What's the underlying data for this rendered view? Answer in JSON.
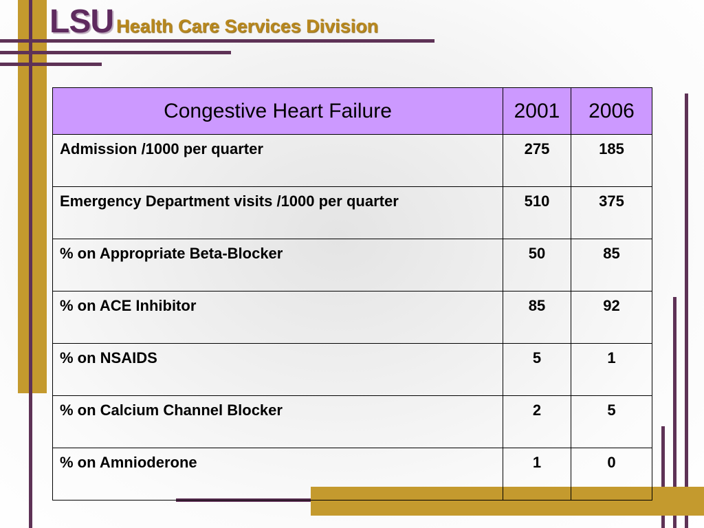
{
  "header": {
    "logo_text": "LSU",
    "division_text": "Health Care Services Division"
  },
  "colors": {
    "purple": "#5e2a5e",
    "gold": "#c49a2e",
    "table_header_bg": "#cc99ff"
  },
  "table": {
    "headers": [
      "Congestive Heart Failure",
      "2001",
      "2006"
    ],
    "rows": [
      {
        "label": "Admission /1000 per quarter",
        "v2001": "275",
        "v2006": "185"
      },
      {
        "label": "Emergency Department visits /1000 per quarter",
        "v2001": "510",
        "v2006": "375"
      },
      {
        "label": "% on Appropriate Beta-Blocker",
        "v2001": "50",
        "v2006": "85"
      },
      {
        "label": "% on ACE Inhibitor",
        "v2001": "85",
        "v2006": "92"
      },
      {
        "label": "% on NSAIDS",
        "v2001": "5",
        "v2006": "1"
      },
      {
        "label": "% on Calcium Channel Blocker",
        "v2001": "2",
        "v2006": "5"
      },
      {
        "label": "% on Amnioderone",
        "v2001": "1",
        "v2006": "0"
      }
    ]
  }
}
